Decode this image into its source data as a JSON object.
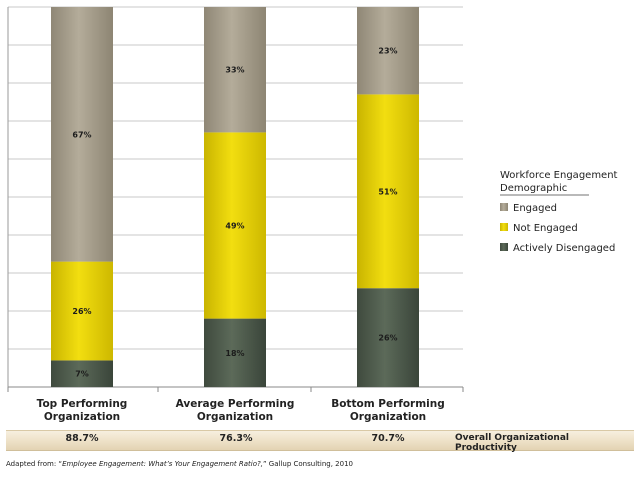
{
  "chart_data": {
    "type": "bar",
    "stacked": true,
    "categories": [
      [
        "Top Performing",
        "Organization"
      ],
      [
        "Average Performing",
        "Organization"
      ],
      [
        "Bottom Performing",
        "Organization"
      ]
    ],
    "series": [
      {
        "name": "Actively Disengaged",
        "color": "#4e5b4c",
        "values": [
          7,
          18,
          26
        ]
      },
      {
        "name": "Not Engaged",
        "color": "#e6cf00",
        "values": [
          26,
          49,
          51
        ]
      },
      {
        "name": "Engaged",
        "color": "#a69d8b",
        "values": [
          67,
          33,
          23
        ]
      }
    ],
    "value_labels": [
      [
        "7%",
        "18%",
        "26%"
      ],
      [
        "26%",
        "49%",
        "51%"
      ],
      [
        "67%",
        "33%",
        "23%"
      ]
    ],
    "ylim": [
      0,
      100
    ],
    "grid": true,
    "legend": {
      "title_lines": [
        "Workforce Engagement",
        "Demographic"
      ],
      "order": [
        "Engaged",
        "Not Engaged",
        "Actively Disengaged"
      ],
      "placement": "right"
    },
    "productivity": {
      "values": [
        "88.7%",
        "76.3%",
        "70.7%"
      ],
      "label": "Overall Organizational Productivity"
    }
  },
  "source": {
    "prefix": "Adapted from: “",
    "title": "Employee Engagement: What’s Your Engagement Ratio?,",
    "suffix": "” Gallup Consulting, 2010"
  }
}
